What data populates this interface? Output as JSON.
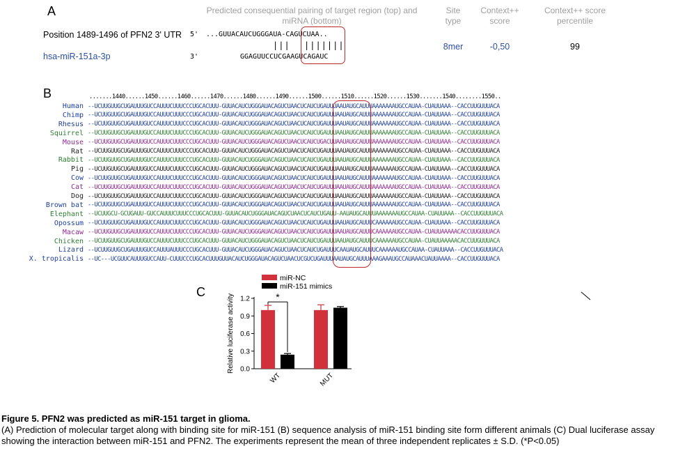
{
  "panel_a": {
    "letter": "A",
    "headers": {
      "pairing": "Predicted consequential pairing of target region (top) and miRNA (bottom)",
      "site_type": "Site type",
      "context_score": "Context++ score",
      "context_percentile": "Context++ score percentile"
    },
    "target_label": "Position 1489-1496 of PFN2 3' UTR",
    "target_prime": "5'",
    "target_seq": "...GUUACAUCUGGGAUA-",
    "target_seed": "CAGUCUAA",
    "target_tail": "..",
    "pair_bars_left": "|||",
    "pair_bars_seed": "|||||||",
    "mirna_label": "hsa-miR-151a-3p",
    "mirna_prime": "3'",
    "mirna_seq": "GGAGUUCCUCGAA",
    "mirna_seed": "GUCAGAUC",
    "site_type": "8mer",
    "context_score": "-0,50",
    "context_percentile": "99"
  },
  "panel_b": {
    "letter": "B",
    "ruler": ".......1440......1450......1460......1470......1480......1490......1500......1510......1520......1530.......1540........1550..",
    "rows": [
      {
        "species": "Human",
        "seq": "--UCUUGUUGCUGAUUUGUCCAUUUCUUUCCCUGCACUUU-GUUACAUCUGGGAUACAGUCUAACUCAUCUGAUUUAAUAUGCAUUUAAAAAAAUGCCAUAA-CUAUUAAA--CACCUUGUUUACA",
        "color": "#1f3f9a"
      },
      {
        "species": "Chimp",
        "seq": "--UCUUGUUGCUGAUUUGUCCAUUUCUUUCCCUGCACUUU-GUUACAUCUGGGAUACAGUCUAACUCAUCUGAUUUAAUAUGCAUUUAAAAAAAUGCCAUAA-CUAUUAAA--CACCUUGUUUACA",
        "color": "#1f3f9a"
      },
      {
        "species": "Rhesus",
        "seq": "--UCUUGUUGCUGAUUUGUCCAUUUCUUUCCCUGCACUUU-GUUACAUCUGGGAUACAGUCUAACUCAUCUGAUUUAAUAUGCAUUUAAAAAAAUGCCAUAA-CUAUUAAA--CACCUUGUUUACA",
        "color": "#1f3f9a"
      },
      {
        "species": "Squirrel",
        "seq": "--UCUUGUUGCUGAUUUGUCCAUUUCUUUCCCUGCACUUU-GUUACAUCUGGGAUACAGUCUAACUCAUCUGAUUUAAUAUGCAUUUAAAAAAAUGCCAUAA-CUAUUAAA--CACCUUGUUUACA",
        "color": "#2e7d32"
      },
      {
        "species": "Mouse",
        "seq": "--UCUUGUUGCUGAUUUGUCCAUUUCUUUCCCUGCACUUU-GUUACAUCUGGGAUACAGUCUAACUCAUCUGACUUAAUAUGCAUUUAAAAAAAUGCCAUAA-CUAUUAAA--CACCUUGUUUACA",
        "color": "#8e2a8e"
      },
      {
        "species": "Rat",
        "seq": "--UCUUGUUGCUGAUUUGUCCAUUUCUUUCCCUGCACUUU-GUUACAUCUGGGAUACAGUCUAACUCAUCUGAUUUAAUAUGCAUUUAAAAAAAUGCCAUAA-CUAUUAAA--CACCUUGUUUACA",
        "color": "#222222"
      },
      {
        "species": "Rabbit",
        "seq": "--UCUUGUUGCUGAUUUGUCCAUUUCUUUCCCUGCACUUU-GUUACAUCUGGGAUACAGUCUAACUCAUCUGAUUUAAUAUGCAUUUAAAAAAAUGCCAUAA-CUAUUAAA--CACCUUGUUUACA",
        "color": "#2e7d32"
      },
      {
        "species": "Pig",
        "seq": "--UCUUGUUGCUGAUUUGUCCAUUUCUUUCCCUGCACUUU-GUUACAUCUGGGAUACAGUCUAACUCAUCUGAUUUAAUAUGCAUUUAAAAAAAUGCCAUAA-CUAUUAAA--CACCUUGUUUACA",
        "color": "#222222"
      },
      {
        "species": "Cow",
        "seq": "--UCUUGUUGCUGAUUUGUCCAUUUCUUUCCCUGCACUUU-GUUACAUCUGGGAUACAGUCUAACUCAUCUGAUUUAAUAUGCAUUUAAAAAAAUGCCAUAA-CUAUUAAA--CACCUUGUUUACA",
        "color": "#1f3f9a"
      },
      {
        "species": "Cat",
        "seq": "--UCUUGUUGCUGAUUUGUCCAUUUCUUUCCCUGCACUUU-GUUACAUCUGGGAUACAGUCUAACUCAUCUGAUUUAAUAUGCAUUUAAAAAAAUGCCAUAA-CUAUUAAA--CACCUUGUUUACA",
        "color": "#8e2a8e"
      },
      {
        "species": "Dog",
        "seq": "--UCUUGUUGCUGAUUUGUCCAUUUCUUUCCCUGCACUUU-GUUACAUCUGGGAUACAGUCUAACUCAUCUGAUUUAAUAUGCAUUUAAAAAAAUGCCAUAA-CUAUUAAA--CACCUUGUUUACA",
        "color": "#222222"
      },
      {
        "species": "Brown bat",
        "seq": "--UCUUGUUGCUGAUUUGUCCAUUUCUUUCCCUGCACUUU-GUUACAUCUGGGAUACAGUCUAACUCAUCUGAUUUAAUAUGCAUUUAAAAAAAUGCCAUAA-CUAUUAAA--CACCUUGUUUACA",
        "color": "#1f3f9a"
      },
      {
        "species": "Elephant",
        "seq": "--UCUUGCU-GCUGAUU-GUCCAUUUCUUUCCCUGCACUUU-GUUACAUCUGGGAUACAGUCUAACUCAUCUGAUU-AAUAUGCAUUUAAAAAAAUGCCAUAA-CUAUUAAA--CACCUUGUUUACA",
        "color": "#2e7d32"
      },
      {
        "species": "Opossum",
        "seq": "--UCUUGUUGCUGAUUUGUCCAUUUCUUUCCCUGCACUUU-GUUACAUCUGGGAUACAGUCUAACUCAUCUGAUUUAAUAUGCAUUUCAAAAAAUGCCAUAA-CUAUUAAA--CACCUUGUUUACA",
        "color": "#1f3f9a"
      },
      {
        "species": "Macaw",
        "seq": "--UCUUGUUGCUGAUUUGUCCAUUUCUUUCCCUGCACUUU-GUUACAUCUGGGAUACAGUCUAACUCAUCUGAUUUAAUAUGCAUUUCAAAAAAUGCCAUAA-CUAUUAAAAACACCUUGUUUACA",
        "color": "#8e2a8e"
      },
      {
        "species": "Chicken",
        "seq": "--UCUUGUUGCUGAUUUGUCCAUUUCUUUCCCUGCACUUU-GUUACAUCUGGGAUACAGUCUAACUCAUCUGAUUUAAUAUGCAUUUCAAAAAAUGCCAUAA-CUAUUAAAAACACCUUGUUUACA",
        "color": "#2e7d32"
      },
      {
        "species": "Lizard",
        "seq": "--UCUUGUUGCUGAUUUGUCCAUUUAUUUCCCUGCACUUU-GUUACAUCUGGGAUACAGUCUAACUCAUCUGAUUUCAAUAUGCAUUUCAAAAAAUGCCAUAA-CUAUUAAA--CACCUUGUUUACA",
        "color": "#1f3f9a"
      },
      {
        "species": "X. tropicalis",
        "seq": "--UC---UCGUUCAUUUGUCCAUU-CUUUCCCUGCACUUUGUUACAUCUGGGAUACAGUCUAACUCGUCUGAUUUAAUAUGCAUUUAAAGAAAUGCCAUAAACUAUUAAAA--CACCUUGUUUACA",
        "color": "#1f3f9a"
      }
    ]
  },
  "panel_c": {
    "letter": "C",
    "chart_data": {
      "type": "bar",
      "categories": [
        "WT",
        "MUT"
      ],
      "series": [
        {
          "name": "miR-NC",
          "values": [
            1.0,
            1.0
          ],
          "errors": [
            0.08,
            0.09
          ],
          "color": "#d0313a"
        },
        {
          "name": "miR-151 mimics",
          "values": [
            0.24,
            1.04
          ],
          "errors": [
            0.02,
            0.02
          ],
          "color": "#000000"
        }
      ],
      "ylabel": "Relative luciferase activity",
      "ylim": [
        0,
        1.2
      ],
      "yticks": [
        "0.0",
        "0.3",
        "0.6",
        "0.9",
        "1.2"
      ],
      "significance": "*",
      "legend_position": "top"
    }
  },
  "caption": {
    "title": "Figure 5. PFN2 was predicted as miR-151 target in glioma.",
    "text": "(A) Prediction of molecular target along with binding site for miR-151 (B) sequence analysis of miR-151 binding site form different animals (C) Dual luciferase assay showing the interaction between miR-151 and PFN2. The experiments represent the mean of three independent replicates ± S.D. (*P<0.05)"
  }
}
